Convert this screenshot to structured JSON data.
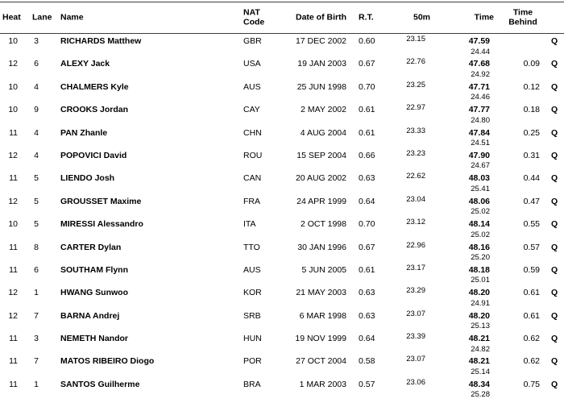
{
  "table": {
    "headers": {
      "heat": "Heat",
      "lane": "Lane",
      "name": "Name",
      "nat_line1": "NAT",
      "nat_line2": "Code",
      "dob": "Date of Birth",
      "rt": "R.T.",
      "m50": "50m",
      "time": "Time",
      "behind_line1": "Time",
      "behind_line2": "Behind"
    },
    "rows": [
      {
        "heat": "10",
        "lane": "3",
        "name": "RICHARDS Matthew",
        "nat": "GBR",
        "dob": "17 DEC 2002",
        "rt": "0.60",
        "m50": "23.15",
        "time": "47.59",
        "split": "24.44",
        "behind": "",
        "q": "Q"
      },
      {
        "heat": "12",
        "lane": "6",
        "name": "ALEXY Jack",
        "nat": "USA",
        "dob": "19 JAN 2003",
        "rt": "0.67",
        "m50": "22.76",
        "time": "47.68",
        "split": "24.92",
        "behind": "0.09",
        "q": "Q"
      },
      {
        "heat": "10",
        "lane": "4",
        "name": "CHALMERS Kyle",
        "nat": "AUS",
        "dob": "25 JUN 1998",
        "rt": "0.70",
        "m50": "23.25",
        "time": "47.71",
        "split": "24.46",
        "behind": "0.12",
        "q": "Q"
      },
      {
        "heat": "10",
        "lane": "9",
        "name": "CROOKS Jordan",
        "nat": "CAY",
        "dob": "2 MAY 2002",
        "rt": "0.61",
        "m50": "22.97",
        "time": "47.77",
        "split": "24.80",
        "behind": "0.18",
        "q": "Q"
      },
      {
        "heat": "11",
        "lane": "4",
        "name": "PAN Zhanle",
        "nat": "CHN",
        "dob": "4 AUG 2004",
        "rt": "0.61",
        "m50": "23.33",
        "time": "47.84",
        "split": "24.51",
        "behind": "0.25",
        "q": "Q"
      },
      {
        "heat": "12",
        "lane": "4",
        "name": "POPOVICI David",
        "nat": "ROU",
        "dob": "15 SEP 2004",
        "rt": "0.66",
        "m50": "23.23",
        "time": "47.90",
        "split": "24.67",
        "behind": "0.31",
        "q": "Q"
      },
      {
        "heat": "11",
        "lane": "5",
        "name": "LIENDO Josh",
        "nat": "CAN",
        "dob": "20 AUG 2002",
        "rt": "0.63",
        "m50": "22.62",
        "time": "48.03",
        "split": "25.41",
        "behind": "0.44",
        "q": "Q"
      },
      {
        "heat": "12",
        "lane": "5",
        "name": "GROUSSET Maxime",
        "nat": "FRA",
        "dob": "24 APR 1999",
        "rt": "0.64",
        "m50": "23.04",
        "time": "48.06",
        "split": "25.02",
        "behind": "0.47",
        "q": "Q"
      },
      {
        "heat": "10",
        "lane": "5",
        "name": "MIRESSI Alessandro",
        "nat": "ITA",
        "dob": "2 OCT 1998",
        "rt": "0.70",
        "m50": "23.12",
        "time": "48.14",
        "split": "25.02",
        "behind": "0.55",
        "q": "Q"
      },
      {
        "heat": "11",
        "lane": "8",
        "name": "CARTER Dylan",
        "nat": "TTO",
        "dob": "30 JAN 1996",
        "rt": "0.67",
        "m50": "22.96",
        "time": "48.16",
        "split": "25.20",
        "behind": "0.57",
        "q": "Q"
      },
      {
        "heat": "11",
        "lane": "6",
        "name": "SOUTHAM Flynn",
        "nat": "AUS",
        "dob": "5 JUN 2005",
        "rt": "0.61",
        "m50": "23.17",
        "time": "48.18",
        "split": "25.01",
        "behind": "0.59",
        "q": "Q"
      },
      {
        "heat": "12",
        "lane": "1",
        "name": "HWANG Sunwoo",
        "nat": "KOR",
        "dob": "21 MAY 2003",
        "rt": "0.63",
        "m50": "23.29",
        "time": "48.20",
        "split": "24.91",
        "behind": "0.61",
        "q": "Q"
      },
      {
        "heat": "12",
        "lane": "7",
        "name": "BARNA Andrej",
        "nat": "SRB",
        "dob": "6 MAR 1998",
        "rt": "0.63",
        "m50": "23.07",
        "time": "48.20",
        "split": "25.13",
        "behind": "0.61",
        "q": "Q"
      },
      {
        "heat": "11",
        "lane": "3",
        "name": "NEMETH Nandor",
        "nat": "HUN",
        "dob": "19 NOV 1999",
        "rt": "0.64",
        "m50": "23.39",
        "time": "48.21",
        "split": "24.82",
        "behind": "0.62",
        "q": "Q"
      },
      {
        "heat": "11",
        "lane": "7",
        "name": "MATOS RIBEIRO Diogo",
        "nat": "POR",
        "dob": "27 OCT 2004",
        "rt": "0.58",
        "m50": "23.07",
        "time": "48.21",
        "split": "25.14",
        "behind": "0.62",
        "q": "Q"
      },
      {
        "heat": "11",
        "lane": "1",
        "name": "SANTOS Guilherme",
        "nat": "BRA",
        "dob": "1 MAR 2003",
        "rt": "0.57",
        "m50": "23.06",
        "time": "48.34",
        "split": "25.28",
        "behind": "0.75",
        "q": "Q"
      }
    ]
  },
  "colors": {
    "rule": "#3d3d3d",
    "text": "#000000",
    "background": "#ffffff"
  }
}
